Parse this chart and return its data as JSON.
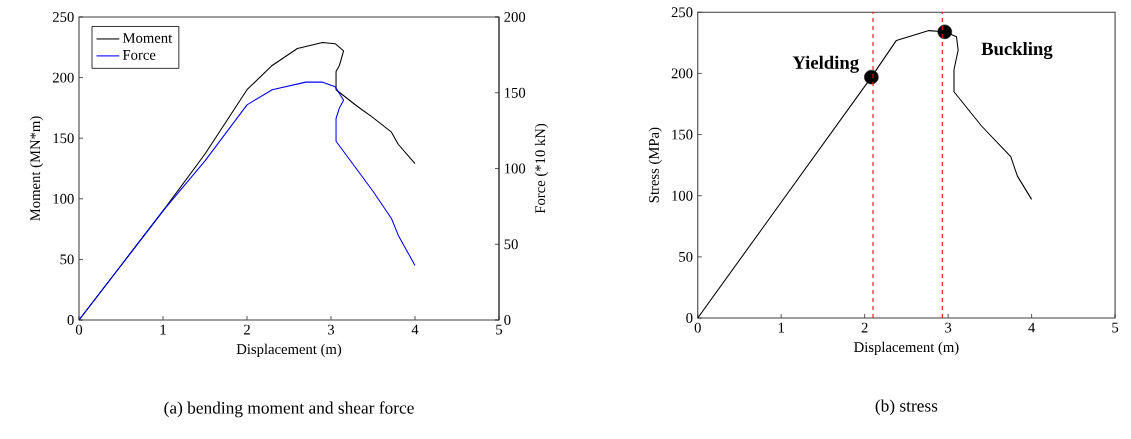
{
  "chart_data": [
    {
      "type": "line",
      "xlabel": "Displacement (m)",
      "ylabel": "Moment (MN*m)",
      "y2label": "Force (*10 kN)",
      "xlim": [
        0,
        5
      ],
      "xticks": [
        0,
        1,
        2,
        3,
        4,
        5
      ],
      "ylim": [
        0,
        250
      ],
      "yticks": [
        0,
        50,
        100,
        150,
        200,
        250
      ],
      "y2lim": [
        0,
        200
      ],
      "y2ticks": [
        0,
        50,
        100,
        150,
        200
      ],
      "legend": "top left",
      "series": [
        {
          "name": "Moment",
          "color": "#000000",
          "x": [
            0,
            0.5,
            1,
            1.5,
            2,
            2.3,
            2.6,
            2.9,
            3.05,
            3.15,
            3.1,
            3.06,
            3.06,
            3.3,
            3.5,
            3.72,
            3.8,
            4.0
          ],
          "values": [
            0,
            45,
            90,
            137,
            190,
            210,
            224,
            229,
            228,
            222,
            210,
            205,
            190,
            177,
            167,
            155,
            145,
            129
          ]
        },
        {
          "name": "Force",
          "color": "#0000ff",
          "axis": "y2",
          "x": [
            0,
            0.5,
            1,
            1.5,
            2,
            2.3,
            2.7,
            2.9,
            3.05,
            3.15,
            3.1,
            3.06,
            3.06,
            3.3,
            3.5,
            3.72,
            3.8,
            4.0
          ],
          "values": [
            0,
            36,
            72,
            105,
            142,
            152,
            157,
            157,
            154,
            145,
            140,
            133,
            118,
            100,
            85,
            67,
            56,
            36
          ]
        }
      ],
      "annotations": [
        "(a) bending moment and shear force"
      ]
    },
    {
      "type": "line",
      "xlabel": "Displacement (m)",
      "ylabel": "Stress (MPa)",
      "xlim": [
        0,
        5
      ],
      "xticks": [
        0,
        1,
        2,
        3,
        4,
        5
      ],
      "ylim": [
        0,
        250
      ],
      "yticks": [
        0,
        50,
        100,
        150,
        200,
        250
      ],
      "series": [
        {
          "color": "#000000",
          "x": [
            0,
            2.08,
            2.38,
            2.77,
            2.96,
            3.1,
            3.12,
            3.07,
            3.07,
            3.4,
            3.75,
            3.83,
            4.0
          ],
          "values": [
            0,
            197,
            227,
            235,
            234,
            230,
            219,
            203,
            185,
            157,
            132,
            116,
            97
          ]
        },
        {
          "type": "scatter",
          "color": "#000000",
          "marker": "circle",
          "x": [
            2.08,
            2.96
          ],
          "values": [
            197,
            234
          ]
        }
      ],
      "ref_lines": [
        {
          "axis": "x",
          "value": 2.1,
          "color": "#ff0000",
          "line_style": "dashed"
        },
        {
          "axis": "x",
          "value": 2.93,
          "color": "#ff0000",
          "line_style": "dashed"
        }
      ],
      "annotations": [
        {
          "text": "Yielding",
          "x": 2.08,
          "y": 197
        },
        {
          "text": "Buckling",
          "x": 2.96,
          "y": 234
        },
        "(b) stress"
      ]
    }
  ]
}
